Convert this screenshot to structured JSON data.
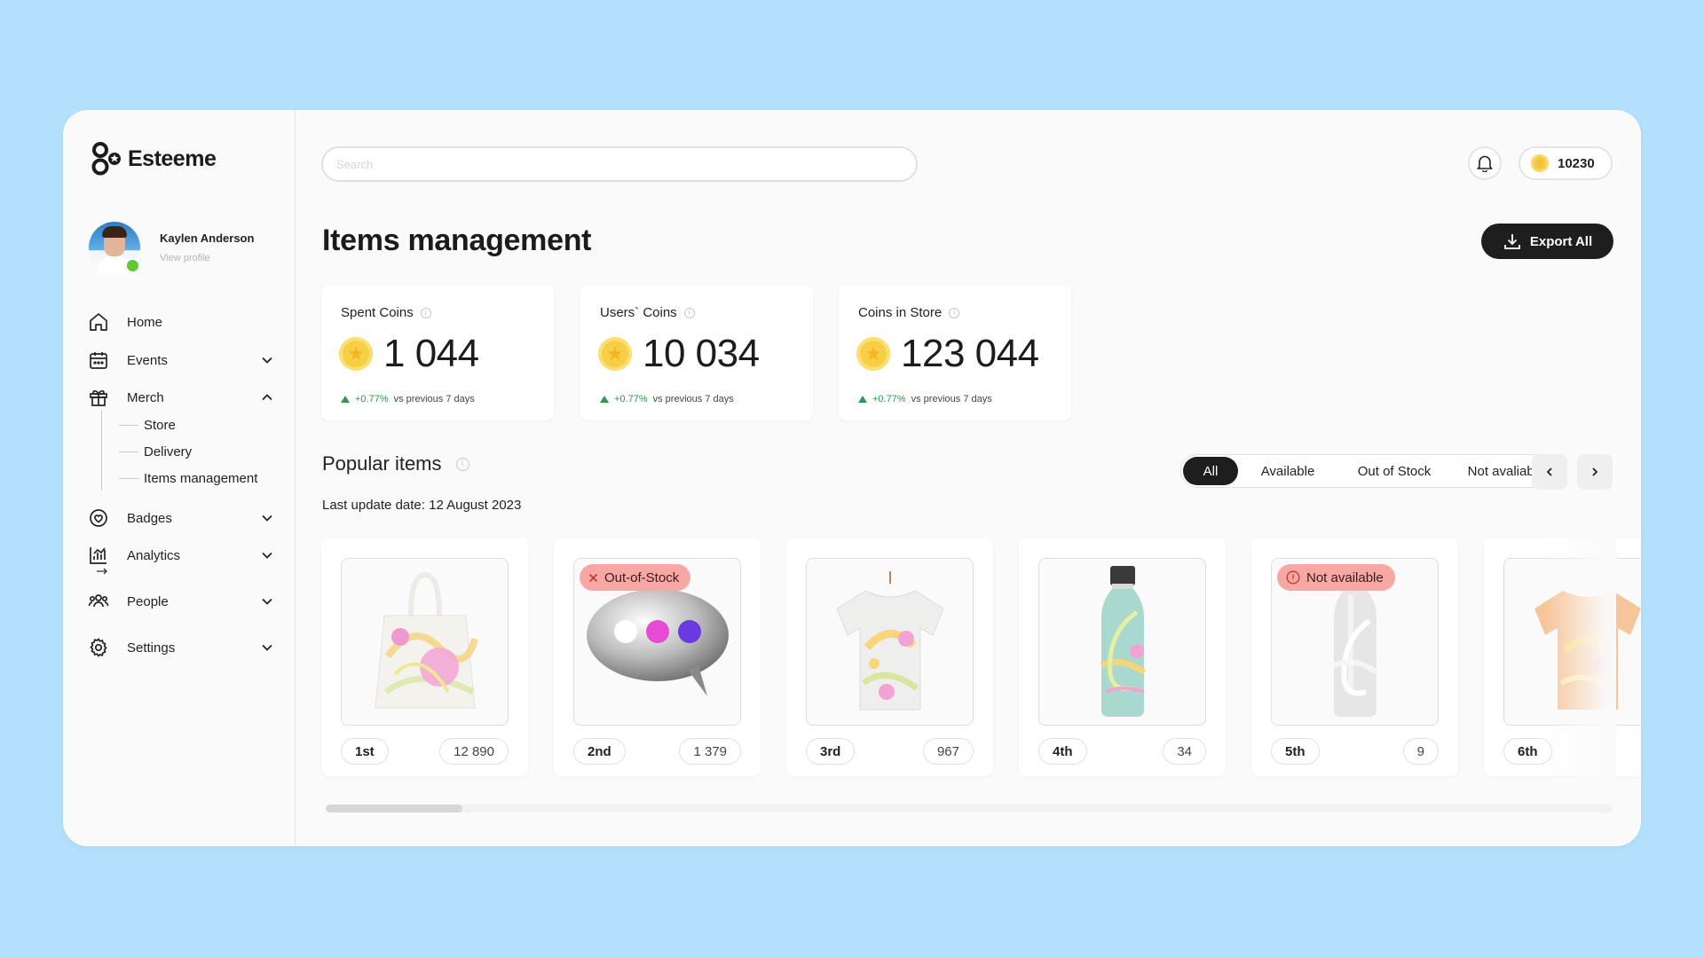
{
  "app": {
    "name": "Esteeme"
  },
  "profile": {
    "name": "Kaylen Anderson",
    "link": "View profile"
  },
  "sidebar": {
    "items": [
      {
        "label": "Home",
        "icon": "home-icon",
        "expandable": false
      },
      {
        "label": "Events",
        "icon": "calendar-icon",
        "expandable": true,
        "expanded": false
      },
      {
        "label": "Merch",
        "icon": "gift-icon",
        "expandable": true,
        "expanded": true
      },
      {
        "label": "Badges",
        "icon": "badge-icon",
        "expandable": true,
        "expanded": false
      },
      {
        "label": "Analytics",
        "icon": "analytics-icon",
        "expandable": true,
        "expanded": false
      },
      {
        "label": "People",
        "icon": "people-icon",
        "expandable": true,
        "expanded": false
      },
      {
        "label": "Settings",
        "icon": "gear-icon",
        "expandable": true,
        "expanded": false
      }
    ],
    "merch_sub": [
      "Store",
      "Delivery",
      "Items management"
    ]
  },
  "search": {
    "placeholder": "Search",
    "value": ""
  },
  "header": {
    "coins": "10230"
  },
  "page": {
    "title": "Items management",
    "export_label": "Export All"
  },
  "stats": [
    {
      "label": "Spent Coins",
      "value": "1 044",
      "delta": "+0.77%",
      "delta_note": "vs previous 7 days"
    },
    {
      "label": "Users` Coins",
      "value": "10 034",
      "delta": "+0.77%",
      "delta_note": "vs previous 7 days"
    },
    {
      "label": "Coins in Store",
      "value": "123 044",
      "delta": "+0.77%",
      "delta_note": "vs previous 7 days"
    }
  ],
  "popular": {
    "title": "Popular items",
    "update_date": "Last update date: 12 August 2023",
    "filters": [
      "All",
      "Available",
      "Out of Stock",
      "Not avaliable"
    ],
    "active_filter": "All",
    "items": [
      {
        "rank": "1st",
        "count": "12 890",
        "status": "",
        "kind": "tote-bag"
      },
      {
        "rank": "2nd",
        "count": "1 379",
        "status": "Out-of-Stock",
        "kind": "chat-bubble"
      },
      {
        "rank": "3rd",
        "count": "967",
        "status": "",
        "kind": "t-shirt"
      },
      {
        "rank": "4th",
        "count": "34",
        "status": "",
        "kind": "bottle"
      },
      {
        "rank": "5th",
        "count": "9",
        "status": "Not available",
        "kind": "bottle-white"
      },
      {
        "rank": "6th",
        "count": "",
        "status": "",
        "kind": "t-shirt-orange"
      }
    ]
  },
  "colors": {
    "accent": "#1e1e1e",
    "background": "#b3e0fc",
    "positive": "#2e9a4a",
    "badge": "#f8a8a4",
    "coin": "#f6cf45",
    "online": "#5fc92e"
  }
}
